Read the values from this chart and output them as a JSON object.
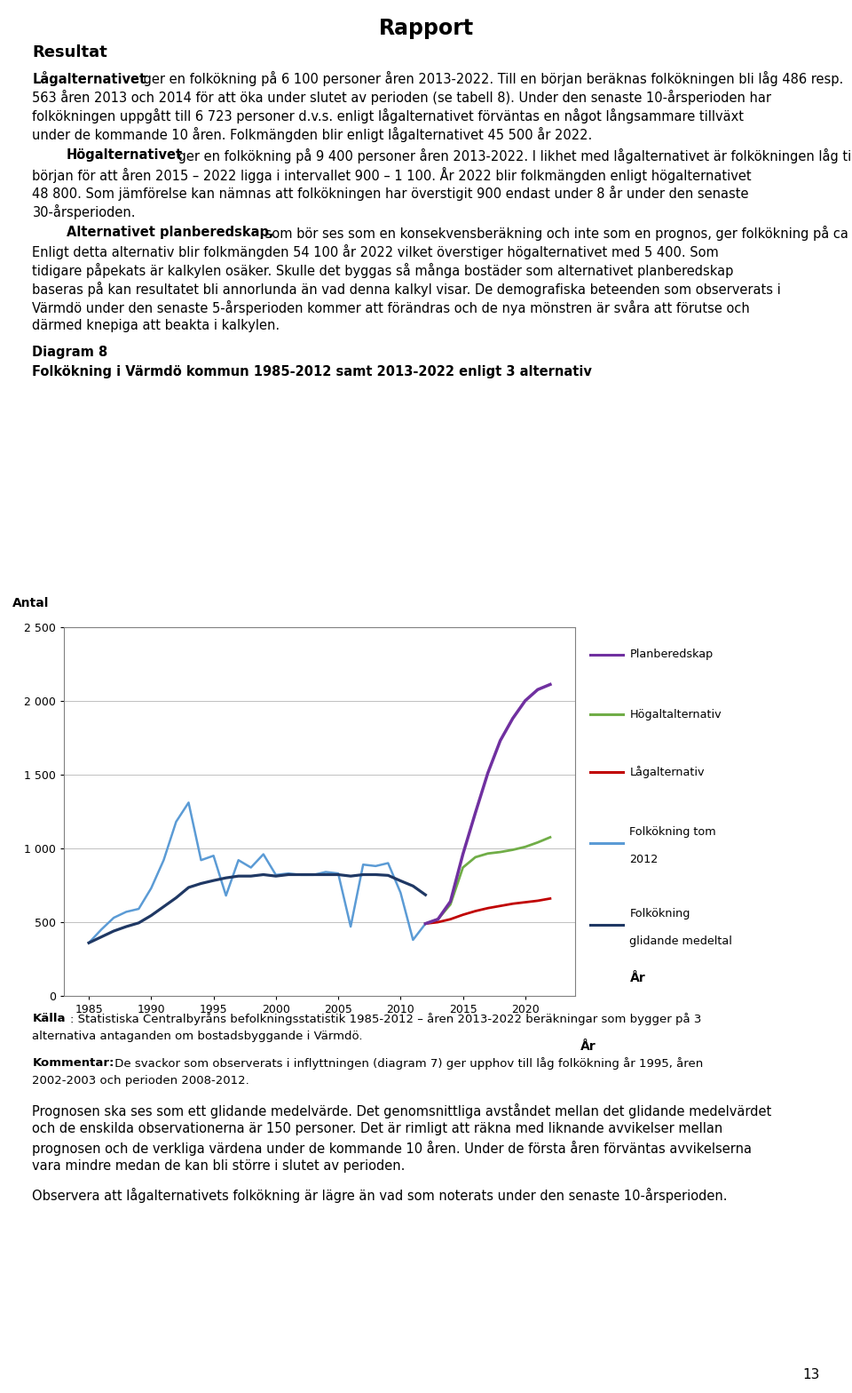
{
  "title": "Rapport",
  "page_number": "13",
  "diagram_label": "Diagram 8",
  "diagram_title": "Folkökning i Värmdö kommun 1985-2012 samt 2013-2022 enligt 3 alternativ",
  "ylabel": "Antal",
  "xlabel": "År",
  "ylim": [
    0,
    2500
  ],
  "ytick_vals": [
    0,
    500,
    1000,
    1500,
    2000,
    2500
  ],
  "ytick_labels": [
    "0",
    "500",
    "1 000",
    "1 500",
    "2 000",
    "2 500"
  ],
  "xtick_vals": [
    1985,
    1990,
    1995,
    2000,
    2005,
    2010,
    2015,
    2020
  ],
  "xlim": [
    1983,
    2024
  ],
  "historical_years": [
    1985,
    1986,
    1987,
    1988,
    1989,
    1990,
    1991,
    1992,
    1993,
    1994,
    1995,
    1996,
    1997,
    1998,
    1999,
    2000,
    2001,
    2002,
    2003,
    2004,
    2005,
    2006,
    2007,
    2008,
    2009,
    2010,
    2011,
    2012
  ],
  "historical_values": [
    360,
    450,
    530,
    570,
    590,
    730,
    920,
    1180,
    1310,
    920,
    950,
    680,
    920,
    870,
    960,
    820,
    830,
    820,
    820,
    840,
    830,
    470,
    890,
    880,
    900,
    700,
    380,
    490
  ],
  "moving_avg_years": [
    1985,
    1986,
    1987,
    1988,
    1989,
    1990,
    1991,
    1992,
    1993,
    1994,
    1995,
    1996,
    1997,
    1998,
    1999,
    2000,
    2001,
    2002,
    2003,
    2004,
    2005,
    2006,
    2007,
    2008,
    2009,
    2010,
    2011,
    2012
  ],
  "moving_avg_values": [
    360,
    400,
    440,
    470,
    495,
    545,
    605,
    665,
    735,
    762,
    782,
    800,
    812,
    812,
    822,
    812,
    822,
    822,
    822,
    822,
    822,
    812,
    822,
    822,
    817,
    780,
    745,
    685
  ],
  "lag_years": [
    2012,
    2013,
    2014,
    2015,
    2016,
    2017,
    2018,
    2019,
    2020,
    2021,
    2022
  ],
  "lag_values": [
    490,
    500,
    520,
    550,
    575,
    595,
    610,
    625,
    635,
    645,
    660
  ],
  "hog_years": [
    2012,
    2013,
    2014,
    2015,
    2016,
    2017,
    2018,
    2019,
    2020,
    2021,
    2022
  ],
  "hog_values": [
    490,
    520,
    620,
    870,
    940,
    965,
    975,
    990,
    1010,
    1040,
    1075
  ],
  "plan_years": [
    2012,
    2013,
    2014,
    2015,
    2016,
    2017,
    2018,
    2019,
    2020,
    2021,
    2022
  ],
  "plan_values": [
    490,
    520,
    640,
    960,
    1240,
    1510,
    1730,
    1880,
    2000,
    2075,
    2110
  ],
  "color_historical": "#5B9BD5",
  "color_moving_avg": "#1F3864",
  "color_lag": "#C00000",
  "color_hog": "#70AD47",
  "color_plan": "#7030A0",
  "body_fontsize": 10.5,
  "small_fontsize": 9.5,
  "chart_box_color": "#D0D0D0"
}
